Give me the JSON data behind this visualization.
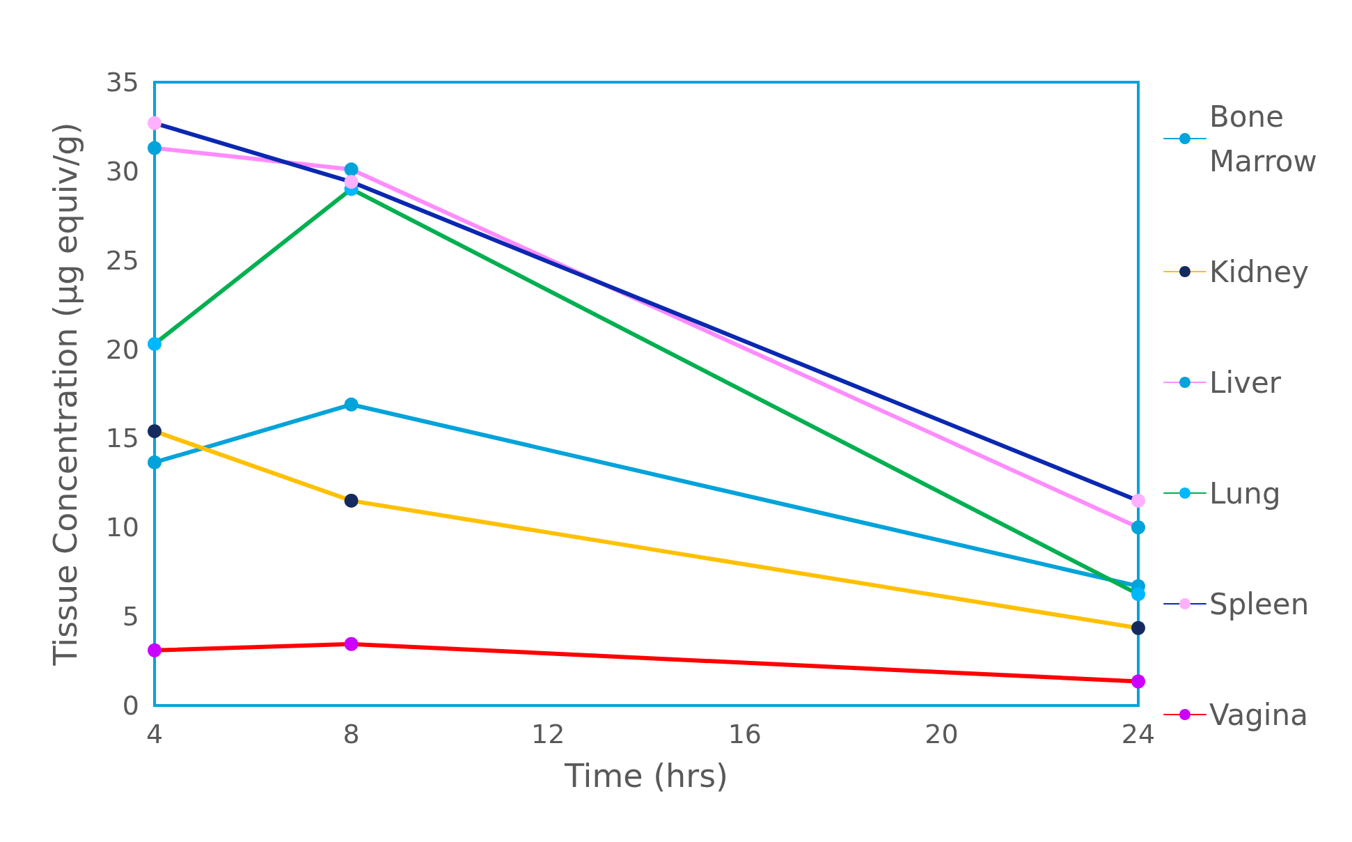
{
  "chart_data": {
    "type": "line",
    "xlabel": "Time (hrs)",
    "ylabel": "Tissue Concentration (µg equiv/g)",
    "x": [
      4,
      8,
      24
    ],
    "xlim": [
      4,
      24
    ],
    "xticks": [
      4,
      8,
      12,
      16,
      20,
      24
    ],
    "ylim": [
      0,
      35
    ],
    "yticks": [
      0,
      5,
      10,
      15,
      20,
      25,
      30,
      35
    ],
    "grid": false,
    "legend": "right",
    "marker": "circle",
    "line_style": "solid",
    "series": [
      {
        "name": "Bone Marrow",
        "color": "#00a3da",
        "colors": [
          "#00a3da",
          "#00a3da",
          "#00a3da"
        ],
        "values": [
          13.65,
          16.9,
          6.7
        ]
      },
      {
        "name": "Kidney",
        "color": "#ffc000",
        "colors": [
          "#152b60",
          "#152b60",
          "#152b60"
        ],
        "values": [
          15.4,
          11.5,
          4.35
        ]
      },
      {
        "name": "Liver",
        "color": "#ff8cff",
        "colors": [
          "#00a3da",
          "#00a3da",
          "#00a3da"
        ],
        "values": [
          31.3,
          30.1,
          10.0
        ]
      },
      {
        "name": "Lung",
        "color": "#00b050",
        "colors": [
          "#00b8ff",
          "#00b8ff",
          "#00b8ff"
        ],
        "values": [
          20.3,
          29.0,
          6.25
        ]
      },
      {
        "name": "Spleen",
        "color": "#0a28b0",
        "colors": [
          "#ffb0ff",
          "#ffb0ff",
          "#ffb0ff"
        ],
        "values": [
          32.7,
          29.4,
          11.5
        ]
      },
      {
        "name": "Vagina",
        "color": "#ff0000",
        "colors": [
          "#cc00ff",
          "#cc00ff",
          "#cc00ff"
        ],
        "values": [
          3.1,
          3.45,
          1.35
        ]
      }
    ]
  }
}
